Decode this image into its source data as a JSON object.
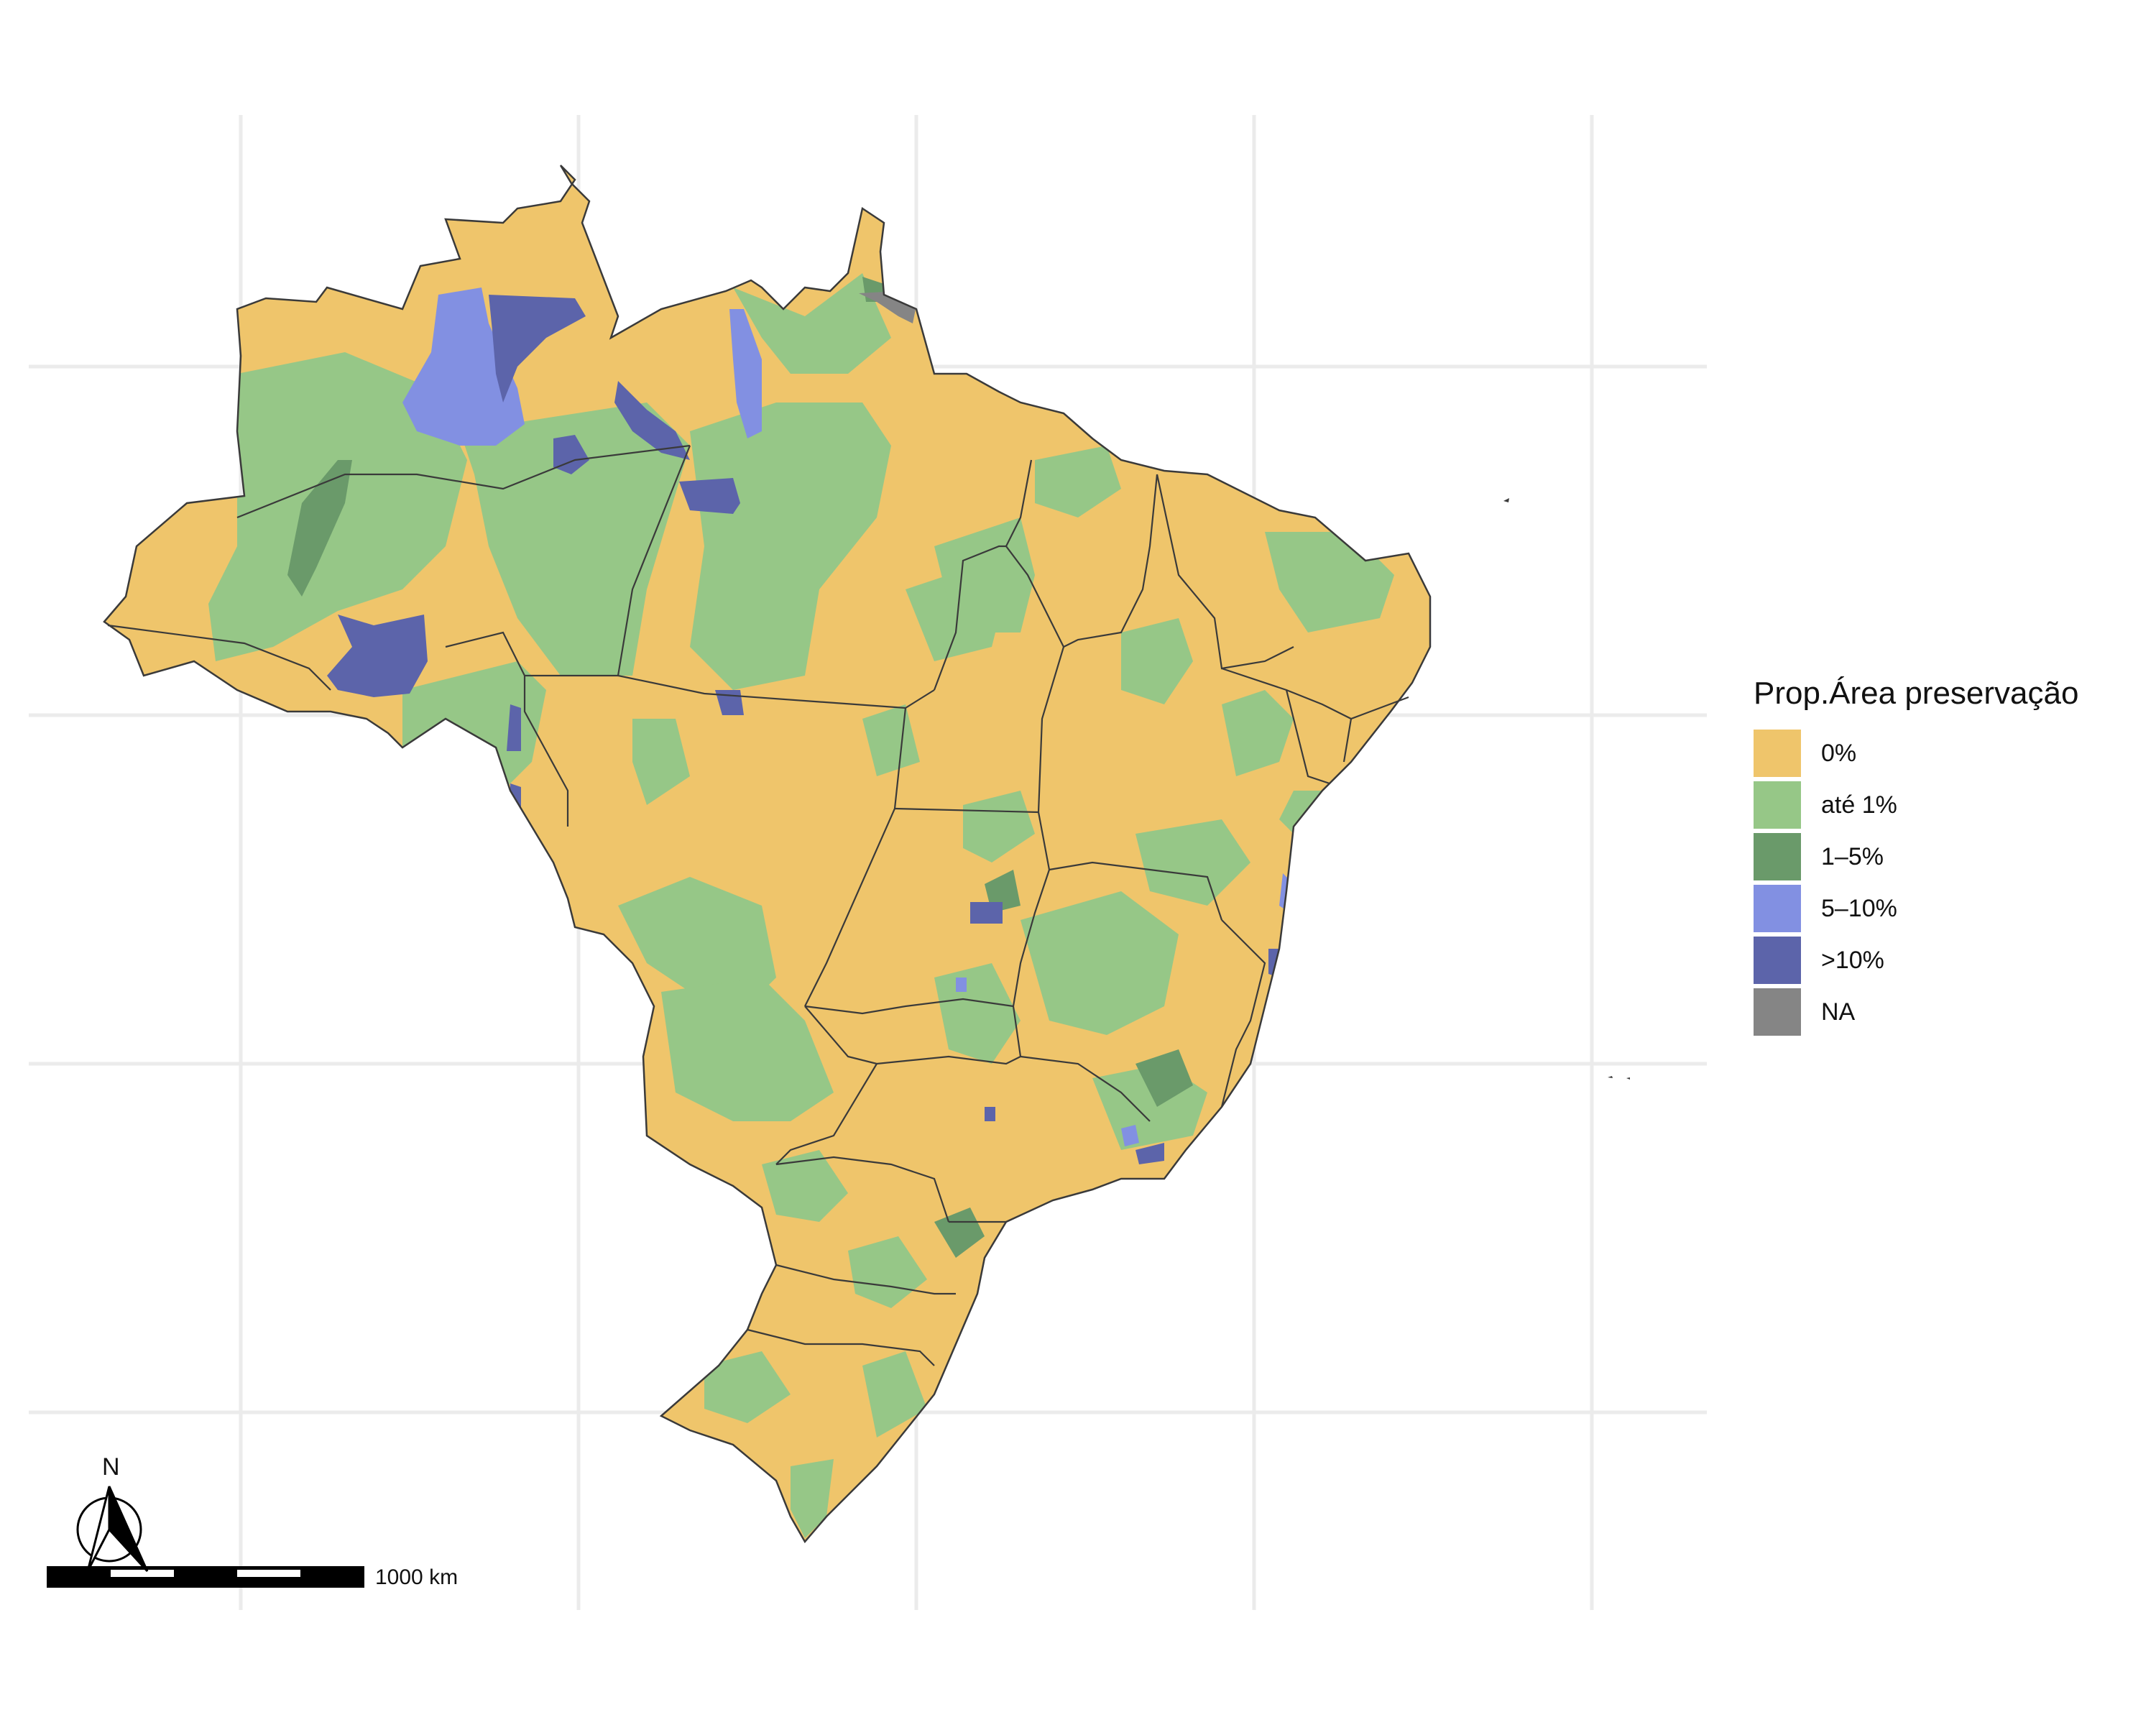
{
  "legend": {
    "title": "Prop.Área preservação",
    "items": [
      {
        "label": "0%",
        "color": "#EFC56B"
      },
      {
        "label": "até 1%",
        "color": "#96C787"
      },
      {
        "label": "1–5%",
        "color": "#6A9A6A"
      },
      {
        "label": "5–10%",
        "color": "#8290E2"
      },
      {
        "label": ">10%",
        "color": "#5C64AA"
      },
      {
        "label": "NA",
        "color": "#858585"
      }
    ]
  },
  "scale_bar": {
    "label": "1000 km"
  },
  "north_arrow": {
    "label": "N"
  },
  "colors": {
    "grid": "#EBEBEB",
    "state_border": "#3a3a3a",
    "background": "#FFFFFF"
  }
}
